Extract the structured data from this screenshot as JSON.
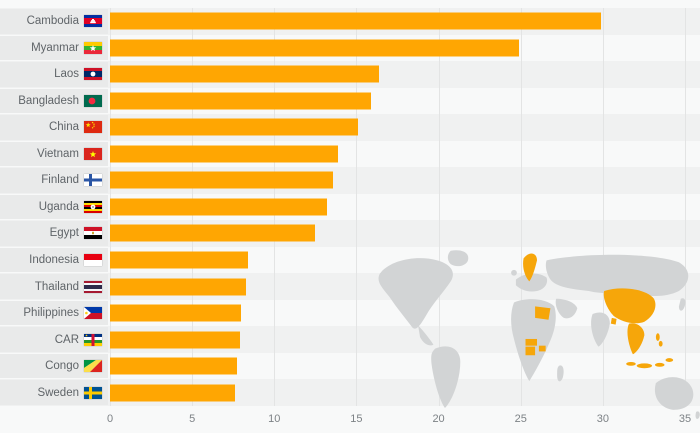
{
  "chart_data": {
    "type": "bar",
    "orientation": "horizontal",
    "title": "",
    "categories": [
      "Cambodia",
      "Myanmar",
      "Laos",
      "Bangladesh",
      "China",
      "Vietnam",
      "Finland",
      "Uganda",
      "Egypt",
      "Indonesia",
      "Thailand",
      "Philippines",
      "CAR",
      "Congo",
      "Sweden"
    ],
    "values": [
      29.9,
      24.9,
      16.4,
      15.9,
      15.1,
      13.9,
      13.6,
      13.2,
      12.5,
      8.4,
      8.3,
      8.0,
      7.9,
      7.7,
      7.6
    ],
    "flag_codes": [
      "kh",
      "mm",
      "la",
      "bd",
      "cn",
      "vn",
      "fi",
      "ug",
      "eg",
      "id",
      "th",
      "ph",
      "cf",
      "cg",
      "se"
    ],
    "xlabel": "",
    "ylabel": "",
    "xlim": [
      0,
      35
    ],
    "x_ticks": [
      0,
      5,
      10,
      15,
      20,
      25,
      30,
      35
    ],
    "x_tick_labels": [
      "0",
      "5",
      "10",
      "15",
      "20",
      "25",
      "30",
      "35"
    ],
    "grid": "vertical",
    "legend": "none",
    "bar_color": "#ffa602"
  },
  "colors": {
    "background": "#f8f9f9",
    "bar": "#ffa602",
    "row_band": "#f0f1f1",
    "label_cell": "#e9eaea",
    "gridline": "#e3e4e4",
    "label_text": "#5f6468",
    "tick_text": "#7d8286",
    "map_land": "#d2d4d5",
    "map_highlight": "#f6a60a"
  },
  "map": {
    "name": "world-map-watermark",
    "highlighted_regions": [
      "Scandinavia",
      "Egypt",
      "Central African Republic",
      "Uganda",
      "Congo",
      "Bangladesh",
      "China",
      "Indochina",
      "Indonesia",
      "Philippines"
    ]
  }
}
